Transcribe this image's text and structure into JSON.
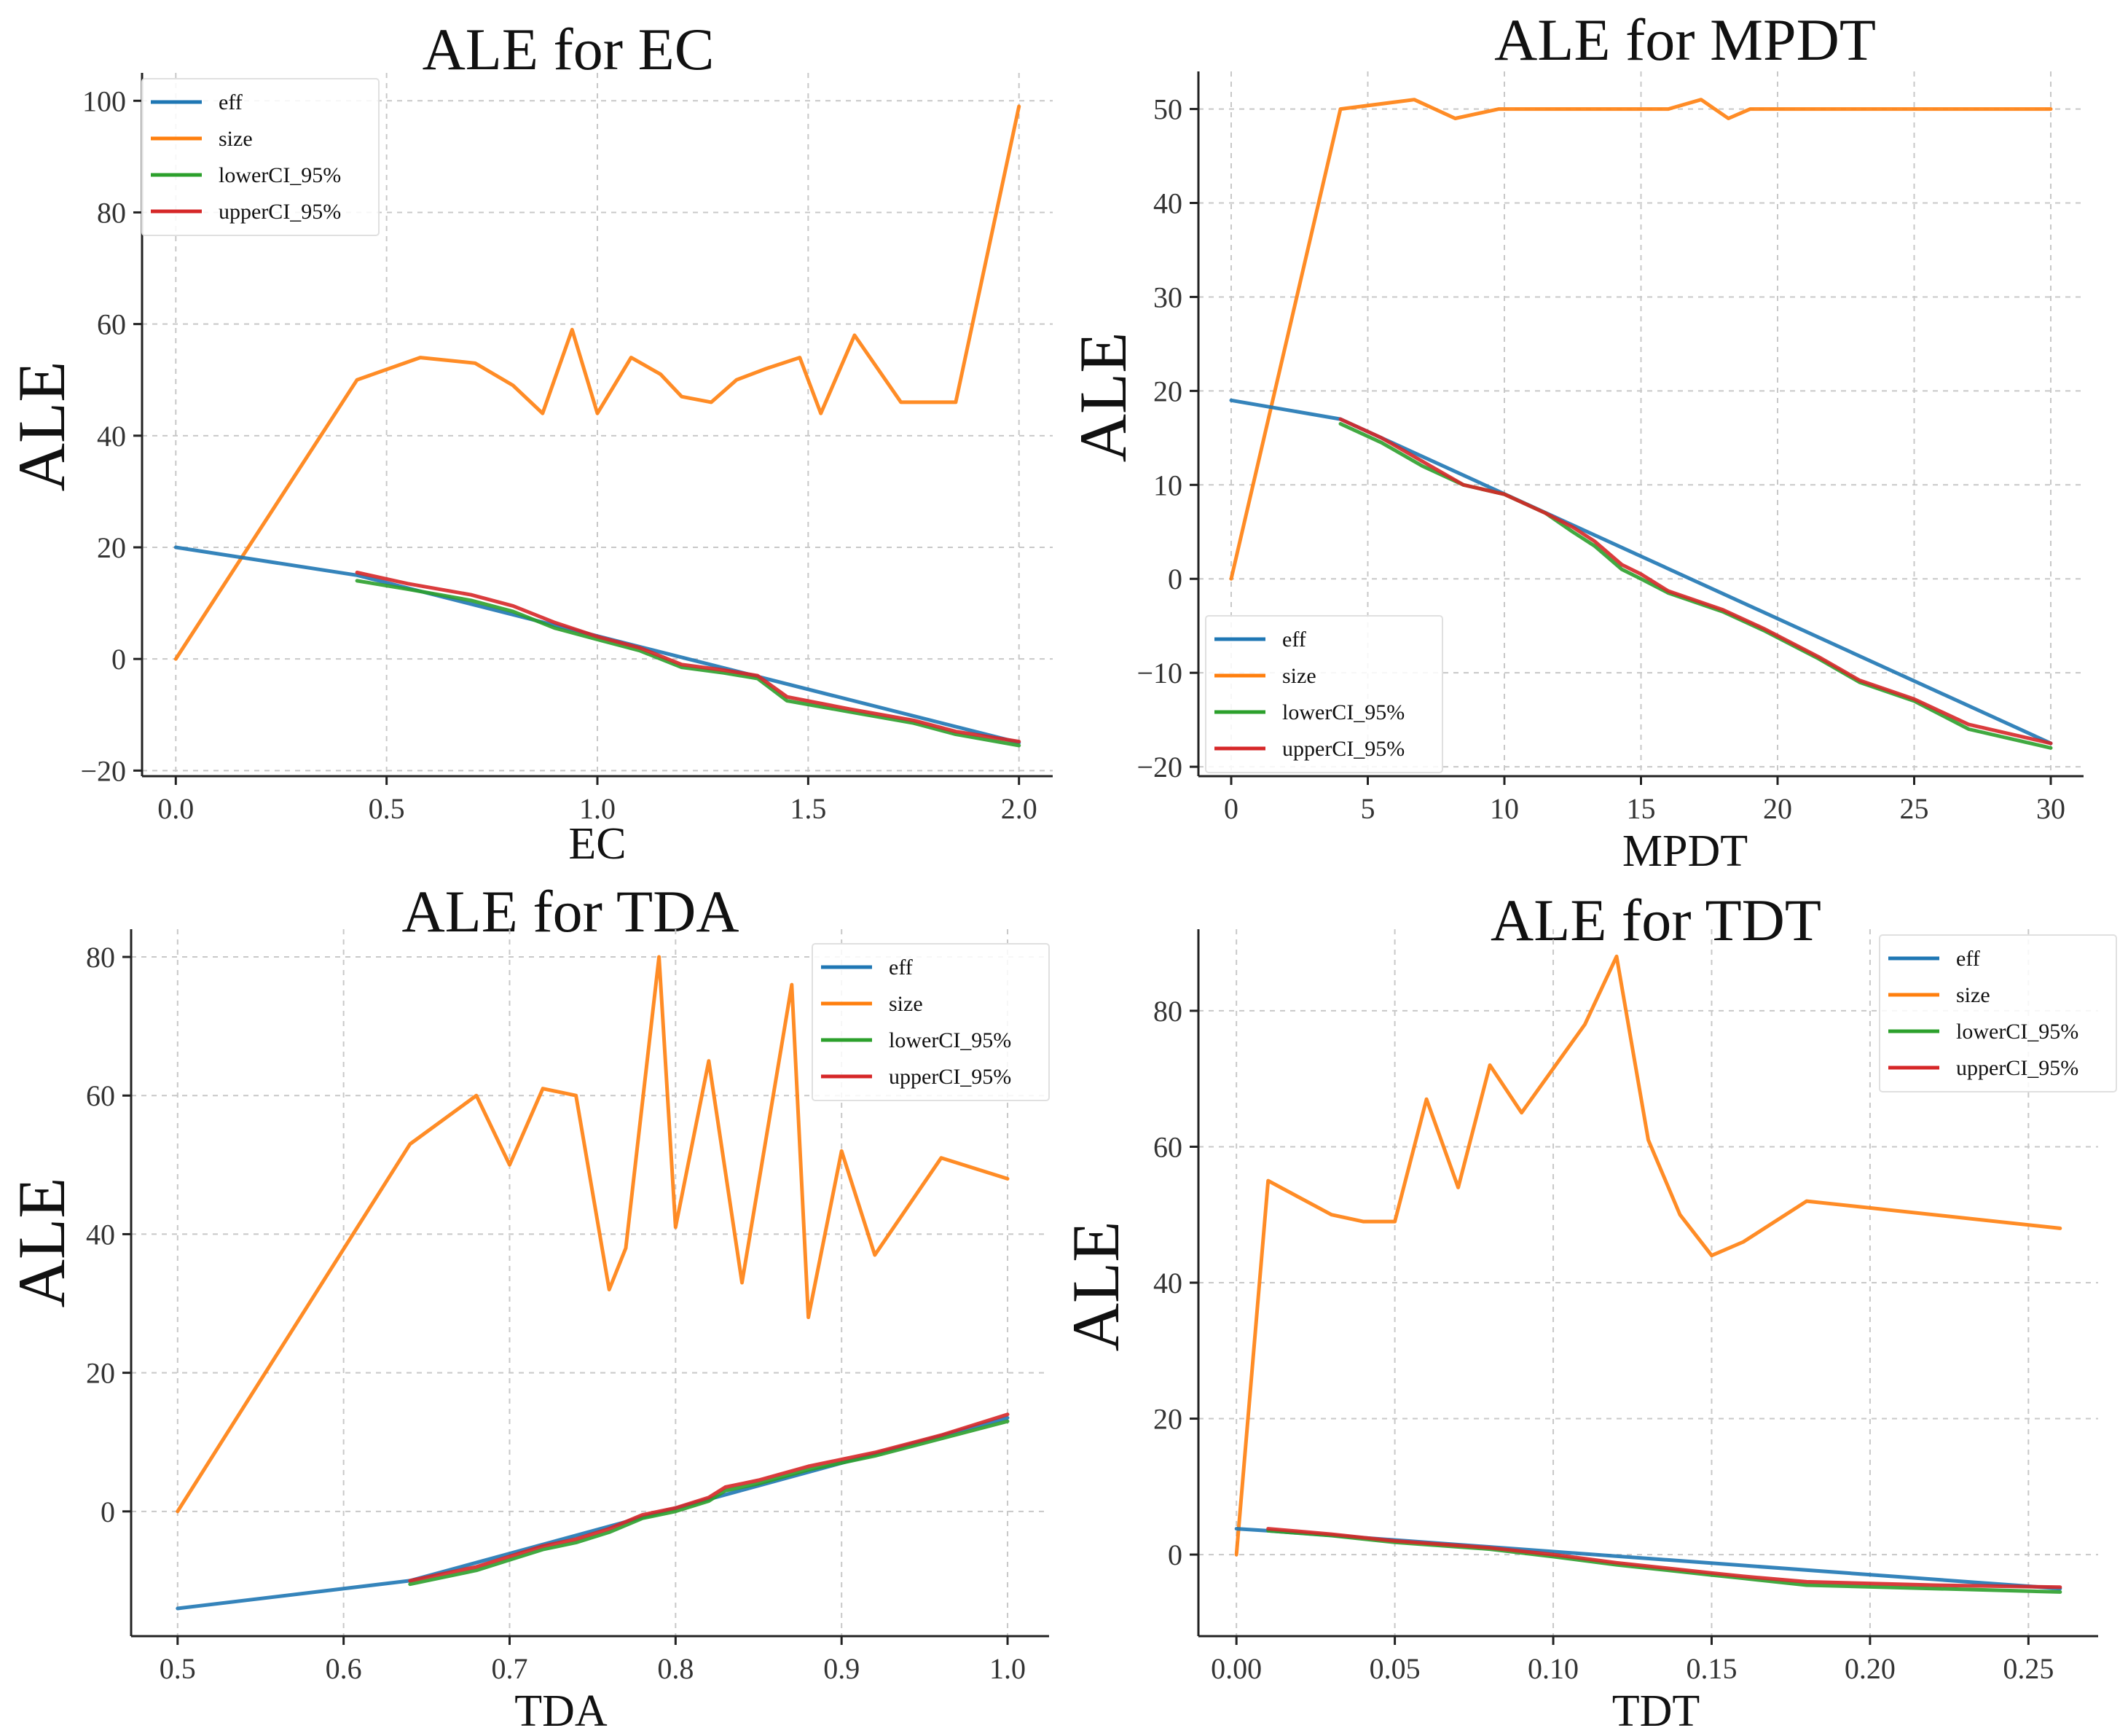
{
  "chart_data": [
    {
      "type": "line",
      "title": "ALE for EC",
      "xlabel": "EC",
      "ylabel": "ALE",
      "xlim": [
        -0.08,
        2.08
      ],
      "ylim": [
        -21,
        105
      ],
      "xticks": [
        0.0,
        0.5,
        1.0,
        1.5,
        2.0
      ],
      "xtick_labels": [
        "0.0",
        "0.5",
        "1.0",
        "1.5",
        "2.0"
      ],
      "yticks": [
        -20,
        0,
        20,
        40,
        60,
        80,
        100
      ],
      "ytick_labels": [
        "−20",
        "0",
        "20",
        "40",
        "60",
        "80",
        "100"
      ],
      "grid": true,
      "legend_position": "top-left",
      "series": [
        {
          "name": "eff",
          "color": "#1f77b4",
          "x": [
            0.0,
            0.43,
            2.0
          ],
          "y": [
            20,
            15,
            -15
          ]
        },
        {
          "name": "size",
          "color": "#ff7f0e",
          "x": [
            0.0,
            0.43,
            0.58,
            0.71,
            0.8,
            0.87,
            0.94,
            1.0,
            1.08,
            1.15,
            1.2,
            1.27,
            1.33,
            1.4,
            1.48,
            1.53,
            1.61,
            1.72,
            1.85,
            2.0
          ],
          "y": [
            0,
            50,
            54,
            53,
            49,
            44,
            59,
            44,
            54,
            51,
            47,
            46,
            50,
            52,
            54,
            44,
            58,
            46,
            46,
            99
          ]
        },
        {
          "name": "lowerCI_95%",
          "color": "#2ca02c",
          "x": [
            0.43,
            0.55,
            0.7,
            0.8,
            0.9,
            1.0,
            1.1,
            1.2,
            1.3,
            1.38,
            1.45,
            1.6,
            1.75,
            1.85,
            2.0
          ],
          "y": [
            14,
            12.5,
            10.5,
            8.5,
            5.5,
            3.5,
            1.5,
            -1.5,
            -2.5,
            -3.5,
            -7.5,
            -9.5,
            -11.5,
            -13.5,
            -15.5
          ]
        },
        {
          "name": "upperCI_95%",
          "color": "#d62728",
          "x": [
            0.43,
            0.55,
            0.7,
            0.8,
            0.9,
            1.0,
            1.1,
            1.2,
            1.3,
            1.38,
            1.45,
            1.6,
            1.75,
            1.85,
            2.0
          ],
          "y": [
            15.5,
            13.5,
            11.5,
            9.5,
            6.5,
            4.0,
            2.0,
            -1.0,
            -2.0,
            -3.0,
            -6.8,
            -9.0,
            -11.0,
            -13.0,
            -14.8
          ]
        }
      ]
    },
    {
      "type": "line",
      "title": "ALE for MPDT",
      "xlabel": "MPDT",
      "ylabel": "ALE",
      "xlim": [
        -1.2,
        31.2
      ],
      "ylim": [
        -21,
        54
      ],
      "xticks": [
        0,
        5,
        10,
        15,
        20,
        25,
        30
      ],
      "xtick_labels": [
        "0",
        "5",
        "10",
        "15",
        "20",
        "25",
        "30"
      ],
      "yticks": [
        -20,
        -10,
        0,
        10,
        20,
        30,
        40,
        50
      ],
      "ytick_labels": [
        "−20",
        "−10",
        "0",
        "10",
        "20",
        "30",
        "40",
        "50"
      ],
      "grid": true,
      "legend_position": "bottom-left",
      "series": [
        {
          "name": "eff",
          "color": "#1f77b4",
          "x": [
            0,
            4,
            30
          ],
          "y": [
            19,
            17,
            -17.5
          ]
        },
        {
          "name": "size",
          "color": "#ff7f0e",
          "x": [
            0,
            4,
            6.7,
            8.2,
            9.8,
            16,
            17.2,
            18.2,
            19,
            30
          ],
          "y": [
            0,
            50,
            51,
            49,
            50,
            50,
            51,
            49,
            50,
            50
          ]
        },
        {
          "name": "lowerCI_95%",
          "color": "#2ca02c",
          "x": [
            4,
            5.5,
            7,
            8.5,
            10,
            11.5,
            12.5,
            13.3,
            14.3,
            15,
            16,
            18,
            19.5,
            21.5,
            23,
            25,
            27,
            30
          ],
          "y": [
            16.5,
            14.5,
            12,
            10,
            9,
            7,
            5,
            3.5,
            1,
            0,
            -1.5,
            -3.5,
            -5.5,
            -8.5,
            -11,
            -13,
            -16,
            -18
          ]
        },
        {
          "name": "upperCI_95%",
          "color": "#d62728",
          "x": [
            4,
            5.5,
            7,
            8.5,
            10,
            11.5,
            12.5,
            13.3,
            14.3,
            15,
            16,
            18,
            19.5,
            21.5,
            23,
            25,
            27,
            30
          ],
          "y": [
            17,
            15,
            12.5,
            10,
            9,
            7,
            5.5,
            4,
            1.5,
            0.5,
            -1.3,
            -3.3,
            -5.3,
            -8.3,
            -10.8,
            -12.8,
            -15.5,
            -17.5
          ]
        }
      ]
    },
    {
      "type": "line",
      "title": "ALE for TDA",
      "xlabel": "TDA",
      "ylabel": "ALE",
      "xlim": [
        0.472,
        1.025
      ],
      "ylim": [
        -18,
        84
      ],
      "xticks": [
        0.5,
        0.6,
        0.7,
        0.8,
        0.9,
        1.0
      ],
      "xtick_labels": [
        "0.5",
        "0.6",
        "0.7",
        "0.8",
        "0.9",
        "1.0"
      ],
      "yticks": [
        0,
        20,
        40,
        60,
        80
      ],
      "ytick_labels": [
        "0",
        "20",
        "40",
        "60",
        "80"
      ],
      "grid": true,
      "legend_position": "top-right",
      "series": [
        {
          "name": "eff",
          "color": "#1f77b4",
          "x": [
            0.5,
            0.64,
            1.0
          ],
          "y": [
            -14,
            -10,
            13.5
          ]
        },
        {
          "name": "size",
          "color": "#ff7f0e",
          "x": [
            0.5,
            0.64,
            0.68,
            0.7,
            0.72,
            0.74,
            0.76,
            0.77,
            0.79,
            0.8,
            0.82,
            0.84,
            0.87,
            0.88,
            0.9,
            0.92,
            0.96,
            1.0
          ],
          "y": [
            0,
            53,
            60,
            50,
            61,
            60,
            32,
            38,
            80,
            41,
            65,
            33,
            76,
            28,
            52,
            37,
            51,
            48
          ]
        },
        {
          "name": "lowerCI_95%",
          "color": "#2ca02c",
          "x": [
            0.64,
            0.68,
            0.7,
            0.72,
            0.74,
            0.76,
            0.78,
            0.8,
            0.82,
            0.83,
            0.85,
            0.88,
            0.92,
            0.96,
            1.0
          ],
          "y": [
            -10.5,
            -8.5,
            -7,
            -5.5,
            -4.5,
            -3,
            -1,
            0,
            1.5,
            3,
            4,
            6,
            8,
            10.5,
            13
          ]
        },
        {
          "name": "upperCI_95%",
          "color": "#d62728",
          "x": [
            0.64,
            0.68,
            0.7,
            0.72,
            0.74,
            0.76,
            0.78,
            0.8,
            0.82,
            0.83,
            0.85,
            0.88,
            0.92,
            0.96,
            1.0
          ],
          "y": [
            -10,
            -8,
            -6.5,
            -5,
            -4,
            -2.5,
            -0.5,
            0.5,
            2,
            3.5,
            4.5,
            6.5,
            8.5,
            11,
            14
          ]
        }
      ]
    },
    {
      "type": "line",
      "title": "ALE for TDT",
      "xlabel": "TDT",
      "ylabel": "ALE",
      "xlim": [
        -0.012,
        0.272
      ],
      "ylim": [
        -12,
        92
      ],
      "xticks": [
        0.0,
        0.05,
        0.1,
        0.15,
        0.2,
        0.25
      ],
      "xtick_labels": [
        "0.00",
        "0.05",
        "0.10",
        "0.15",
        "0.20",
        "0.25"
      ],
      "yticks": [
        0,
        20,
        40,
        60,
        80
      ],
      "ytick_labels": [
        "0",
        "20",
        "40",
        "60",
        "80"
      ],
      "grid": true,
      "legend_position": "top-right",
      "series": [
        {
          "name": "eff",
          "color": "#1f77b4",
          "x": [
            0.0,
            0.01,
            0.26
          ],
          "y": [
            3.8,
            3.5,
            -5
          ]
        },
        {
          "name": "size",
          "color": "#ff7f0e",
          "x": [
            0.0,
            0.01,
            0.03,
            0.04,
            0.05,
            0.06,
            0.07,
            0.08,
            0.09,
            0.11,
            0.12,
            0.13,
            0.14,
            0.15,
            0.16,
            0.18,
            0.26
          ],
          "y": [
            0,
            55,
            50,
            49,
            49,
            67,
            54,
            72,
            65,
            78,
            88,
            61,
            50,
            44,
            46,
            52,
            48
          ]
        },
        {
          "name": "lowerCI_95%",
          "color": "#2ca02c",
          "x": [
            0.01,
            0.03,
            0.05,
            0.08,
            0.1,
            0.12,
            0.15,
            0.16,
            0.18,
            0.22,
            0.26
          ],
          "y": [
            3.5,
            2.8,
            1.8,
            0.8,
            -0.3,
            -1.5,
            -3,
            -3.5,
            -4.5,
            -5,
            -5.5
          ]
        },
        {
          "name": "upperCI_95%",
          "color": "#d62728",
          "x": [
            0.01,
            0.03,
            0.05,
            0.08,
            0.1,
            0.12,
            0.15,
            0.16,
            0.18,
            0.22,
            0.26
          ],
          "y": [
            3.8,
            3.0,
            2.0,
            1.0,
            0.0,
            -1.2,
            -2.7,
            -3.2,
            -4.0,
            -4.5,
            -4.8
          ]
        }
      ]
    }
  ]
}
